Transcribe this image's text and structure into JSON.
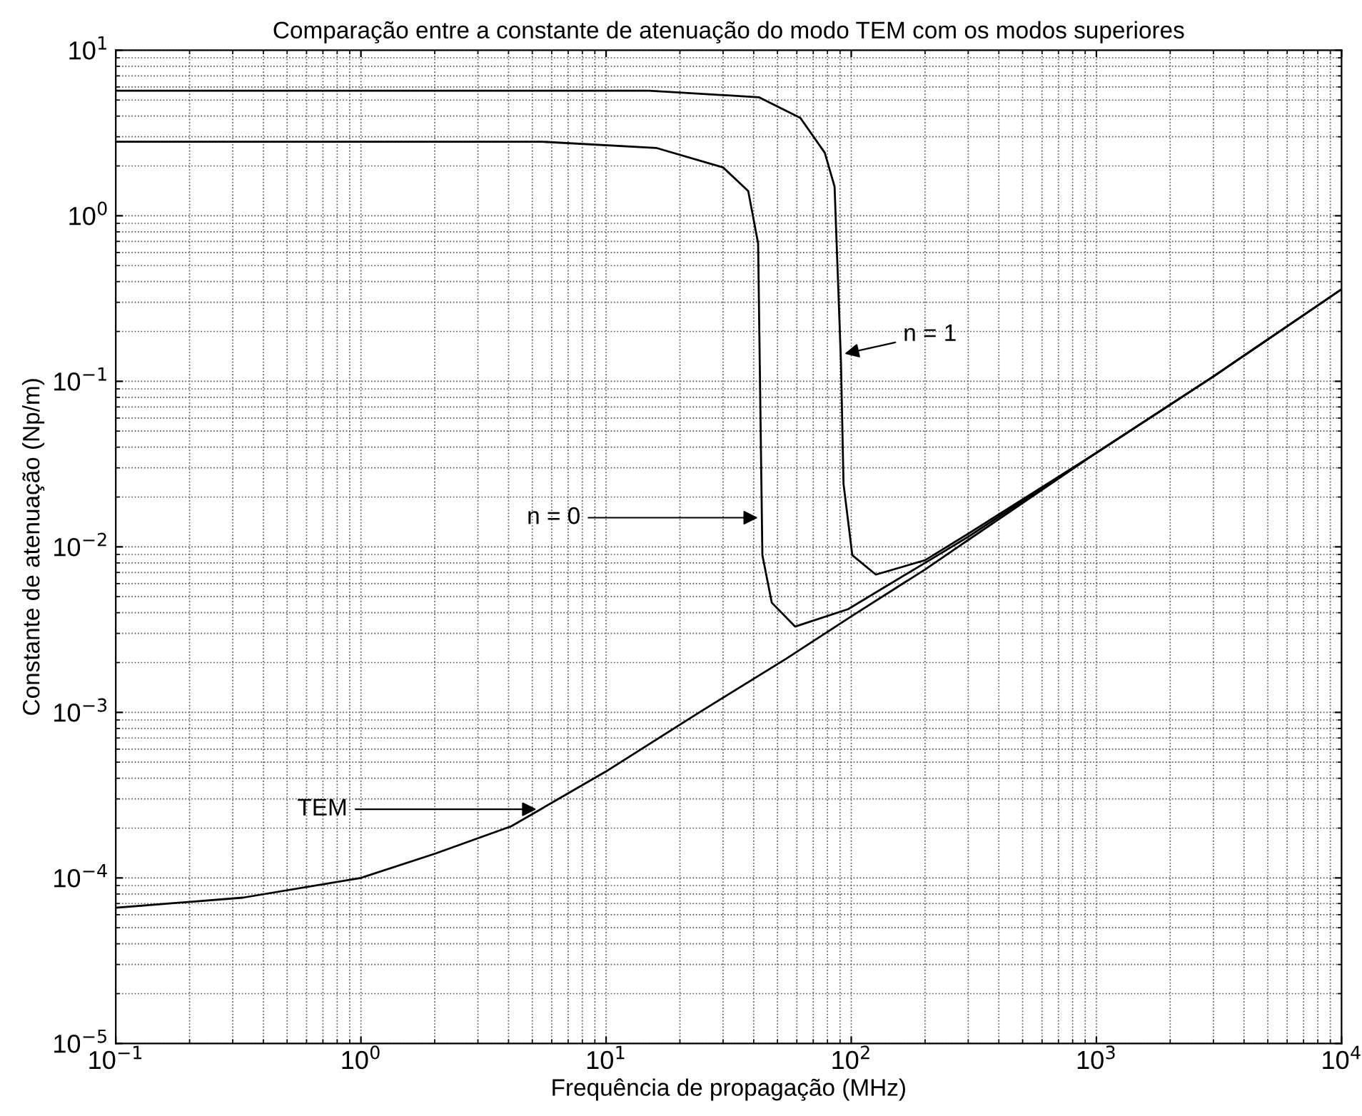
{
  "chart_data": {
    "type": "line",
    "title": "Comparação entre a constante de atenuação do modo TEM com os modos superiores",
    "xlabel": "Frequência de propagação (MHz)",
    "ylabel": "Constante de atenuação (Np/m)",
    "log": "xy",
    "grid": true,
    "legend": false,
    "marker": "none",
    "line_style": "solid",
    "xlim": [
      0.1,
      10000
    ],
    "ylim": [
      1e-05,
      10
    ],
    "xticks": [
      {
        "value": 0.1,
        "label": "10$^{−1}$"
      },
      {
        "value": 1,
        "label": "10$^{0}$"
      },
      {
        "value": 10,
        "label": "10$^{1}$"
      },
      {
        "value": 100,
        "label": "10$^{2}$"
      },
      {
        "value": 1000,
        "label": "10$^{3}$"
      },
      {
        "value": 10000,
        "label": "10$^{4}$"
      }
    ],
    "yticks": [
      {
        "value": 1e-05,
        "label": "10$^{−5}$"
      },
      {
        "value": 0.0001,
        "label": "10$^{−4}$"
      },
      {
        "value": 0.001,
        "label": "10$^{−3}$"
      },
      {
        "value": 0.01,
        "label": "10$^{−2}$"
      },
      {
        "value": 0.1,
        "label": "10$^{−1}$"
      },
      {
        "value": 1,
        "label": "10$^{0}$"
      },
      {
        "value": 10,
        "label": "10$^{1}$"
      }
    ],
    "series": [
      {
        "color": "#000000",
        "x": [
          0.1,
          0.33,
          1,
          2,
          4.1,
          10,
          24,
          54,
          100,
          200,
          300,
          1000,
          3000,
          10000
        ],
        "values": [
          6.6e-05,
          7.6e-05,
          0.0001,
          0.00014,
          0.000205,
          0.00044,
          0.001,
          0.0021,
          0.0038,
          0.0073,
          0.011,
          0.037,
          0.107,
          0.36
        ]
      },
      {
        "color": "#000000",
        "x": [
          0.1,
          5.5,
          16,
          30,
          38,
          41.7,
          43.4,
          47.4,
          59,
          97,
          200,
          300,
          1000,
          3000,
          10000
        ],
        "values": [
          2.8,
          2.8,
          2.57,
          1.96,
          1.41,
          0.68,
          0.0089,
          0.0046,
          0.0033,
          0.0042,
          0.008,
          0.0115,
          0.037,
          0.107,
          0.36
        ]
      },
      {
        "color": "#000000",
        "x": [
          0.1,
          15,
          42,
          62,
          78,
          85.5,
          90.8,
          93,
          101,
          126,
          200,
          300,
          1000,
          3000,
          10000
        ],
        "values": [
          5.7,
          5.7,
          5.2,
          3.9,
          2.4,
          1.5,
          0.13,
          0.024,
          0.0089,
          0.0068,
          0.0083,
          0.012,
          0.037,
          0.107,
          0.36
        ]
      }
    ],
    "annotations": [
      {
        "text": "TEM",
        "x": 5.4,
        "y": 0.00026
      },
      {
        "text": "n = 0",
        "x": 43.2,
        "y": 0.015
      },
      {
        "text": "n = 1",
        "x": 90.6,
        "y": 0.145
      }
    ]
  }
}
